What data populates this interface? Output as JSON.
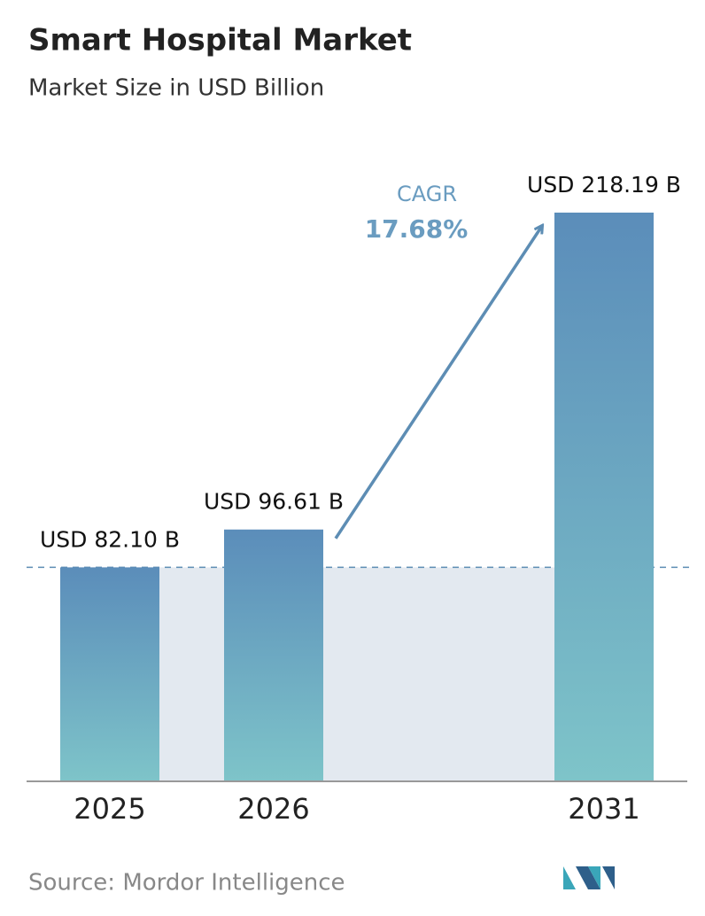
{
  "chart_data": {
    "type": "bar",
    "title": "Smart Hospital Market",
    "subtitle": "Market Size in USD Billion",
    "categories": [
      "2025",
      "2026",
      "2031"
    ],
    "values": [
      82.1,
      96.61,
      218.19
    ],
    "value_labels": [
      "USD 82.10 B",
      "USD 96.61 B",
      "USD 218.19 B"
    ],
    "annotations": [
      "CAGR",
      "17.68%"
    ],
    "source": "Source:  Mordor Intelligence",
    "colors": [
      "#5b8dba",
      "#7ec4c9"
    ]
  }
}
